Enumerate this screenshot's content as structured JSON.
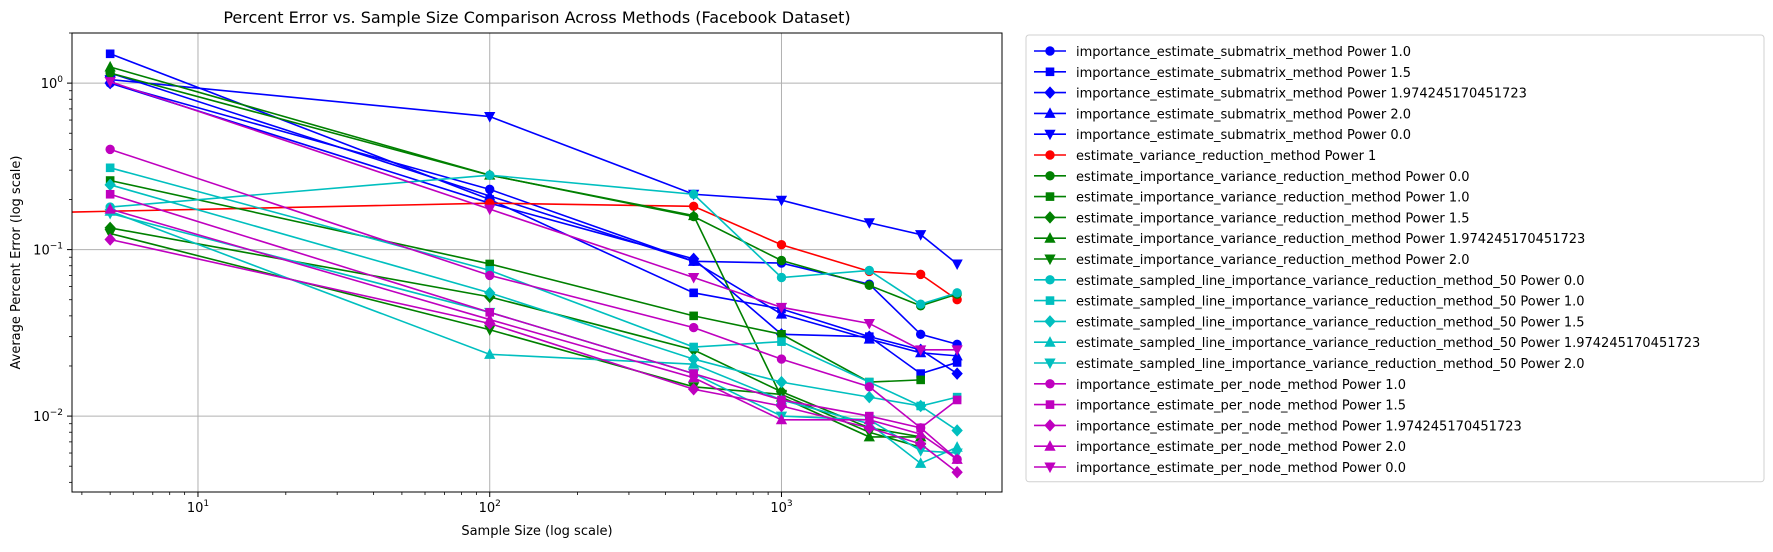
{
  "chart_data": {
    "type": "line",
    "title": "Percent Error vs. Sample Size Comparison Across Methods (Facebook Dataset)",
    "xlabel": "Sample Size (log scale)",
    "ylabel": "Average Percent Error (log scale)",
    "xscale": "log",
    "yscale": "log",
    "xlim": [
      3.7,
      5700
    ],
    "ylim": [
      0.0035,
      2.0
    ],
    "grid": true,
    "legend_position": "outside-right",
    "x_ticks": [
      {
        "value": 10,
        "base": "10",
        "exp": "1"
      },
      {
        "value": 100,
        "base": "10",
        "exp": "2"
      },
      {
        "value": 1000,
        "base": "10",
        "exp": "3"
      }
    ],
    "y_ticks": [
      {
        "value": 0.01,
        "base": "10",
        "exp": "−2"
      },
      {
        "value": 0.1,
        "base": "10",
        "exp": "−1"
      },
      {
        "value": 1,
        "base": "10",
        "exp": "0"
      }
    ],
    "x": [
      5,
      100,
      500,
      1000,
      2000,
      3000,
      4000
    ],
    "series": [
      {
        "name": "importance_estimate_submatrix_method Power 1.0",
        "color": "#0000ff",
        "marker": "circle",
        "points": [
          [
            5,
            1.0
          ],
          [
            100,
            0.23
          ],
          [
            500,
            0.085
          ],
          [
            1000,
            0.083
          ],
          [
            2000,
            0.062
          ],
          [
            3000,
            0.031
          ],
          [
            4000,
            0.027
          ]
        ]
      },
      {
        "name": "importance_estimate_submatrix_method Power 1.5",
        "color": "#0000ff",
        "marker": "square",
        "points": [
          [
            5,
            1.5
          ],
          [
            100,
            0.2
          ],
          [
            500,
            0.055
          ],
          [
            1000,
            0.044
          ],
          [
            2000,
            0.03
          ],
          [
            3000,
            0.018
          ],
          [
            4000,
            0.021
          ]
        ]
      },
      {
        "name": "importance_estimate_submatrix_method Power 1.974245170451723",
        "color": "#0000ff",
        "marker": "diamond",
        "points": [
          [
            5,
            1.0
          ],
          [
            100,
            0.19
          ],
          [
            500,
            0.088
          ],
          [
            1000,
            0.031
          ],
          [
            2000,
            0.03
          ],
          [
            3000,
            0.025
          ],
          [
            4000,
            0.018
          ]
        ]
      },
      {
        "name": "importance_estimate_submatrix_method Power 2.0",
        "color": "#0000ff",
        "marker": "triangle-up",
        "points": [
          [
            5,
            1.15
          ],
          [
            100,
            0.21
          ],
          [
            500,
            0.085
          ],
          [
            1000,
            0.041
          ],
          [
            2000,
            0.029
          ],
          [
            3000,
            0.024
          ],
          [
            4000,
            0.023
          ]
        ]
      },
      {
        "name": "importance_estimate_submatrix_method Power 0.0",
        "color": "#0000ff",
        "marker": "triangle-down",
        "points": [
          [
            5,
            1.05
          ],
          [
            100,
            0.63
          ],
          [
            500,
            0.215
          ],
          [
            1000,
            0.198
          ],
          [
            2000,
            0.145
          ],
          [
            3000,
            0.123
          ],
          [
            4000,
            0.082
          ]
        ]
      },
      {
        "name": "estimate_variance_reduction_method Power 1",
        "color": "#ff0000",
        "marker": "circle",
        "points": [
          [
            5,
            0.17
          ],
          [
            100,
            0.19
          ],
          [
            500,
            0.182
          ],
          [
            1000,
            0.107
          ],
          [
            2000,
            0.074
          ],
          [
            3000,
            0.071
          ],
          [
            4000,
            0.05
          ]
        ]
      },
      {
        "name": "estimate_importance_variance_reduction_method Power 0.0",
        "color": "#008000",
        "marker": "circle",
        "points": [
          [
            5,
            1.15
          ],
          [
            100,
            0.28
          ],
          [
            500,
            0.158
          ],
          [
            1000,
            0.086
          ],
          [
            2000,
            0.061
          ],
          [
            3000,
            0.046
          ],
          [
            4000,
            0.054
          ]
        ]
      },
      {
        "name": "estimate_importance_variance_reduction_method Power 1.0",
        "color": "#008000",
        "marker": "square",
        "points": [
          [
            5,
            0.26
          ],
          [
            100,
            0.082
          ],
          [
            500,
            0.04
          ],
          [
            1000,
            0.031
          ],
          [
            2000,
            0.016
          ],
          [
            3000,
            0.0165
          ]
        ]
      },
      {
        "name": "estimate_importance_variance_reduction_method Power 1.5",
        "color": "#008000",
        "marker": "diamond",
        "points": [
          [
            5,
            0.135
          ],
          [
            100,
            0.052
          ],
          [
            500,
            0.025
          ],
          [
            1000,
            0.014
          ],
          [
            2000,
            0.0085
          ],
          [
            3000,
            0.0075
          ]
        ]
      },
      {
        "name": "estimate_importance_variance_reduction_method Power 1.974245170451723",
        "color": "#008000",
        "marker": "triangle-up",
        "points": [
          [
            5,
            1.25
          ],
          [
            100,
            0.28
          ],
          [
            500,
            0.16
          ],
          [
            1000,
            0.013
          ],
          [
            2000,
            0.0075
          ],
          [
            3000,
            0.0075
          ]
        ]
      },
      {
        "name": "estimate_importance_variance_reduction_method Power 2.0",
        "color": "#008000",
        "marker": "triangle-down",
        "points": [
          [
            5,
            0.125
          ],
          [
            100,
            0.033
          ],
          [
            500,
            0.015
          ],
          [
            1000,
            0.0135
          ],
          [
            2000,
            0.008
          ],
          [
            3000,
            0.0065
          ]
        ]
      },
      {
        "name": "estimate_sampled_line_importance_variance_reduction_method_50 Power 0.0",
        "color": "#00bfbf",
        "marker": "circle",
        "points": [
          [
            5,
            0.18
          ],
          [
            100,
            0.28
          ],
          [
            500,
            0.215
          ],
          [
            1000,
            0.068
          ],
          [
            2000,
            0.075
          ],
          [
            3000,
            0.047
          ],
          [
            4000,
            0.055
          ]
        ]
      },
      {
        "name": "estimate_sampled_line_importance_variance_reduction_method_50 Power 1.0",
        "color": "#00bfbf",
        "marker": "square",
        "points": [
          [
            5,
            0.31
          ],
          [
            100,
            0.075
          ],
          [
            500,
            0.026
          ],
          [
            1000,
            0.028
          ],
          [
            2000,
            0.016
          ],
          [
            3000,
            0.0115
          ],
          [
            4000,
            0.013
          ]
        ]
      },
      {
        "name": "estimate_sampled_line_importance_variance_reduction_method_50 Power 1.5",
        "color": "#00bfbf",
        "marker": "diamond",
        "points": [
          [
            5,
            0.245
          ],
          [
            100,
            0.055
          ],
          [
            500,
            0.022
          ],
          [
            1000,
            0.016
          ],
          [
            2000,
            0.013
          ],
          [
            3000,
            0.0115
          ],
          [
            4000,
            0.0082
          ]
        ]
      },
      {
        "name": "estimate_sampled_line_importance_variance_reduction_method_50 Power 1.974245170451723",
        "color": "#00bfbf",
        "marker": "triangle-up",
        "points": [
          [
            5,
            0.17
          ],
          [
            100,
            0.0235
          ],
          [
            500,
            0.0205
          ],
          [
            1000,
            0.0125
          ],
          [
            2000,
            0.009
          ],
          [
            3000,
            0.0052
          ],
          [
            4000,
            0.0065
          ]
        ]
      },
      {
        "name": "estimate_sampled_line_importance_variance_reduction_method_50 Power 2.0",
        "color": "#00bfbf",
        "marker": "triangle-down",
        "points": [
          [
            5,
            0.165
          ],
          [
            100,
            0.042
          ],
          [
            500,
            0.018
          ],
          [
            1000,
            0.01
          ],
          [
            2000,
            0.0095
          ],
          [
            3000,
            0.0062
          ],
          [
            4000,
            0.006
          ]
        ]
      },
      {
        "name": "importance_estimate_per_node_method Power 1.0",
        "color": "#bf00bf",
        "marker": "circle",
        "points": [
          [
            5,
            0.4
          ],
          [
            100,
            0.07
          ],
          [
            500,
            0.034
          ],
          [
            1000,
            0.022
          ],
          [
            2000,
            0.015
          ],
          [
            3000,
            0.0085
          ],
          [
            4000,
            0.0055
          ]
        ]
      },
      {
        "name": "importance_estimate_per_node_method Power 1.5",
        "color": "#bf00bf",
        "marker": "square",
        "points": [
          [
            5,
            0.215
          ],
          [
            100,
            0.042
          ],
          [
            500,
            0.018
          ],
          [
            1000,
            0.0125
          ],
          [
            2000,
            0.01
          ],
          [
            3000,
            0.0085
          ],
          [
            4000,
            0.0125
          ]
        ]
      },
      {
        "name": "importance_estimate_per_node_method Power 1.974245170451723",
        "color": "#bf00bf",
        "marker": "diamond",
        "points": [
          [
            5,
            0.115
          ],
          [
            100,
            0.036
          ],
          [
            500,
            0.0145
          ],
          [
            1000,
            0.0115
          ],
          [
            2000,
            0.0085
          ],
          [
            3000,
            0.0068
          ],
          [
            4000,
            0.0046
          ]
        ]
      },
      {
        "name": "importance_estimate_per_node_method Power 2.0",
        "color": "#bf00bf",
        "marker": "triangle-up",
        "points": [
          [
            5,
            0.175
          ],
          [
            100,
            0.038
          ],
          [
            500,
            0.017
          ],
          [
            1000,
            0.0095
          ],
          [
            2000,
            0.0095
          ],
          [
            3000,
            0.0078
          ],
          [
            4000,
            0.0055
          ]
        ]
      },
      {
        "name": "importance_estimate_per_node_method Power 0.0",
        "color": "#bf00bf",
        "marker": "triangle-down",
        "points": [
          [
            5,
            1.02
          ],
          [
            100,
            0.175
          ],
          [
            500,
            0.068
          ],
          [
            1000,
            0.045
          ],
          [
            2000,
            0.036
          ],
          [
            3000,
            0.025
          ],
          [
            4000,
            0.025
          ]
        ]
      }
    ]
  }
}
